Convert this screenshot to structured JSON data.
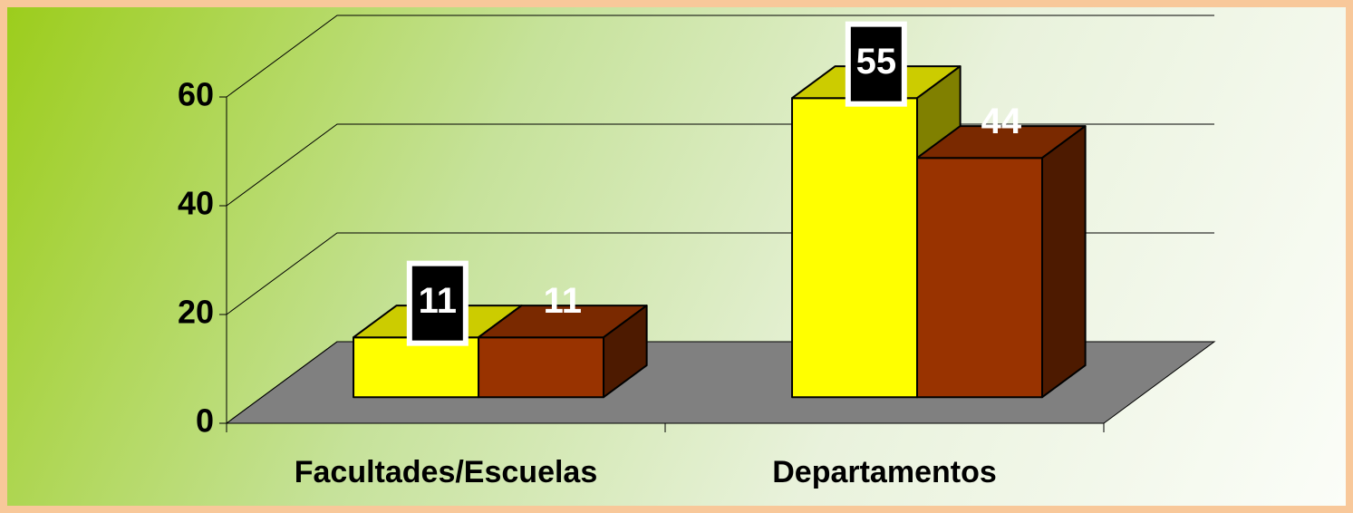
{
  "chart_data": {
    "type": "bar3d",
    "categories": [
      "Facultades/Escuelas",
      "Departamentos"
    ],
    "series": [
      {
        "color": "#ffff00",
        "values": [
          11,
          55
        ]
      },
      {
        "color": "#993300",
        "values": [
          11,
          44
        ]
      }
    ],
    "ylim": [
      0,
      60
    ],
    "yticks": [
      0,
      20,
      40,
      60
    ],
    "grid": true
  }
}
